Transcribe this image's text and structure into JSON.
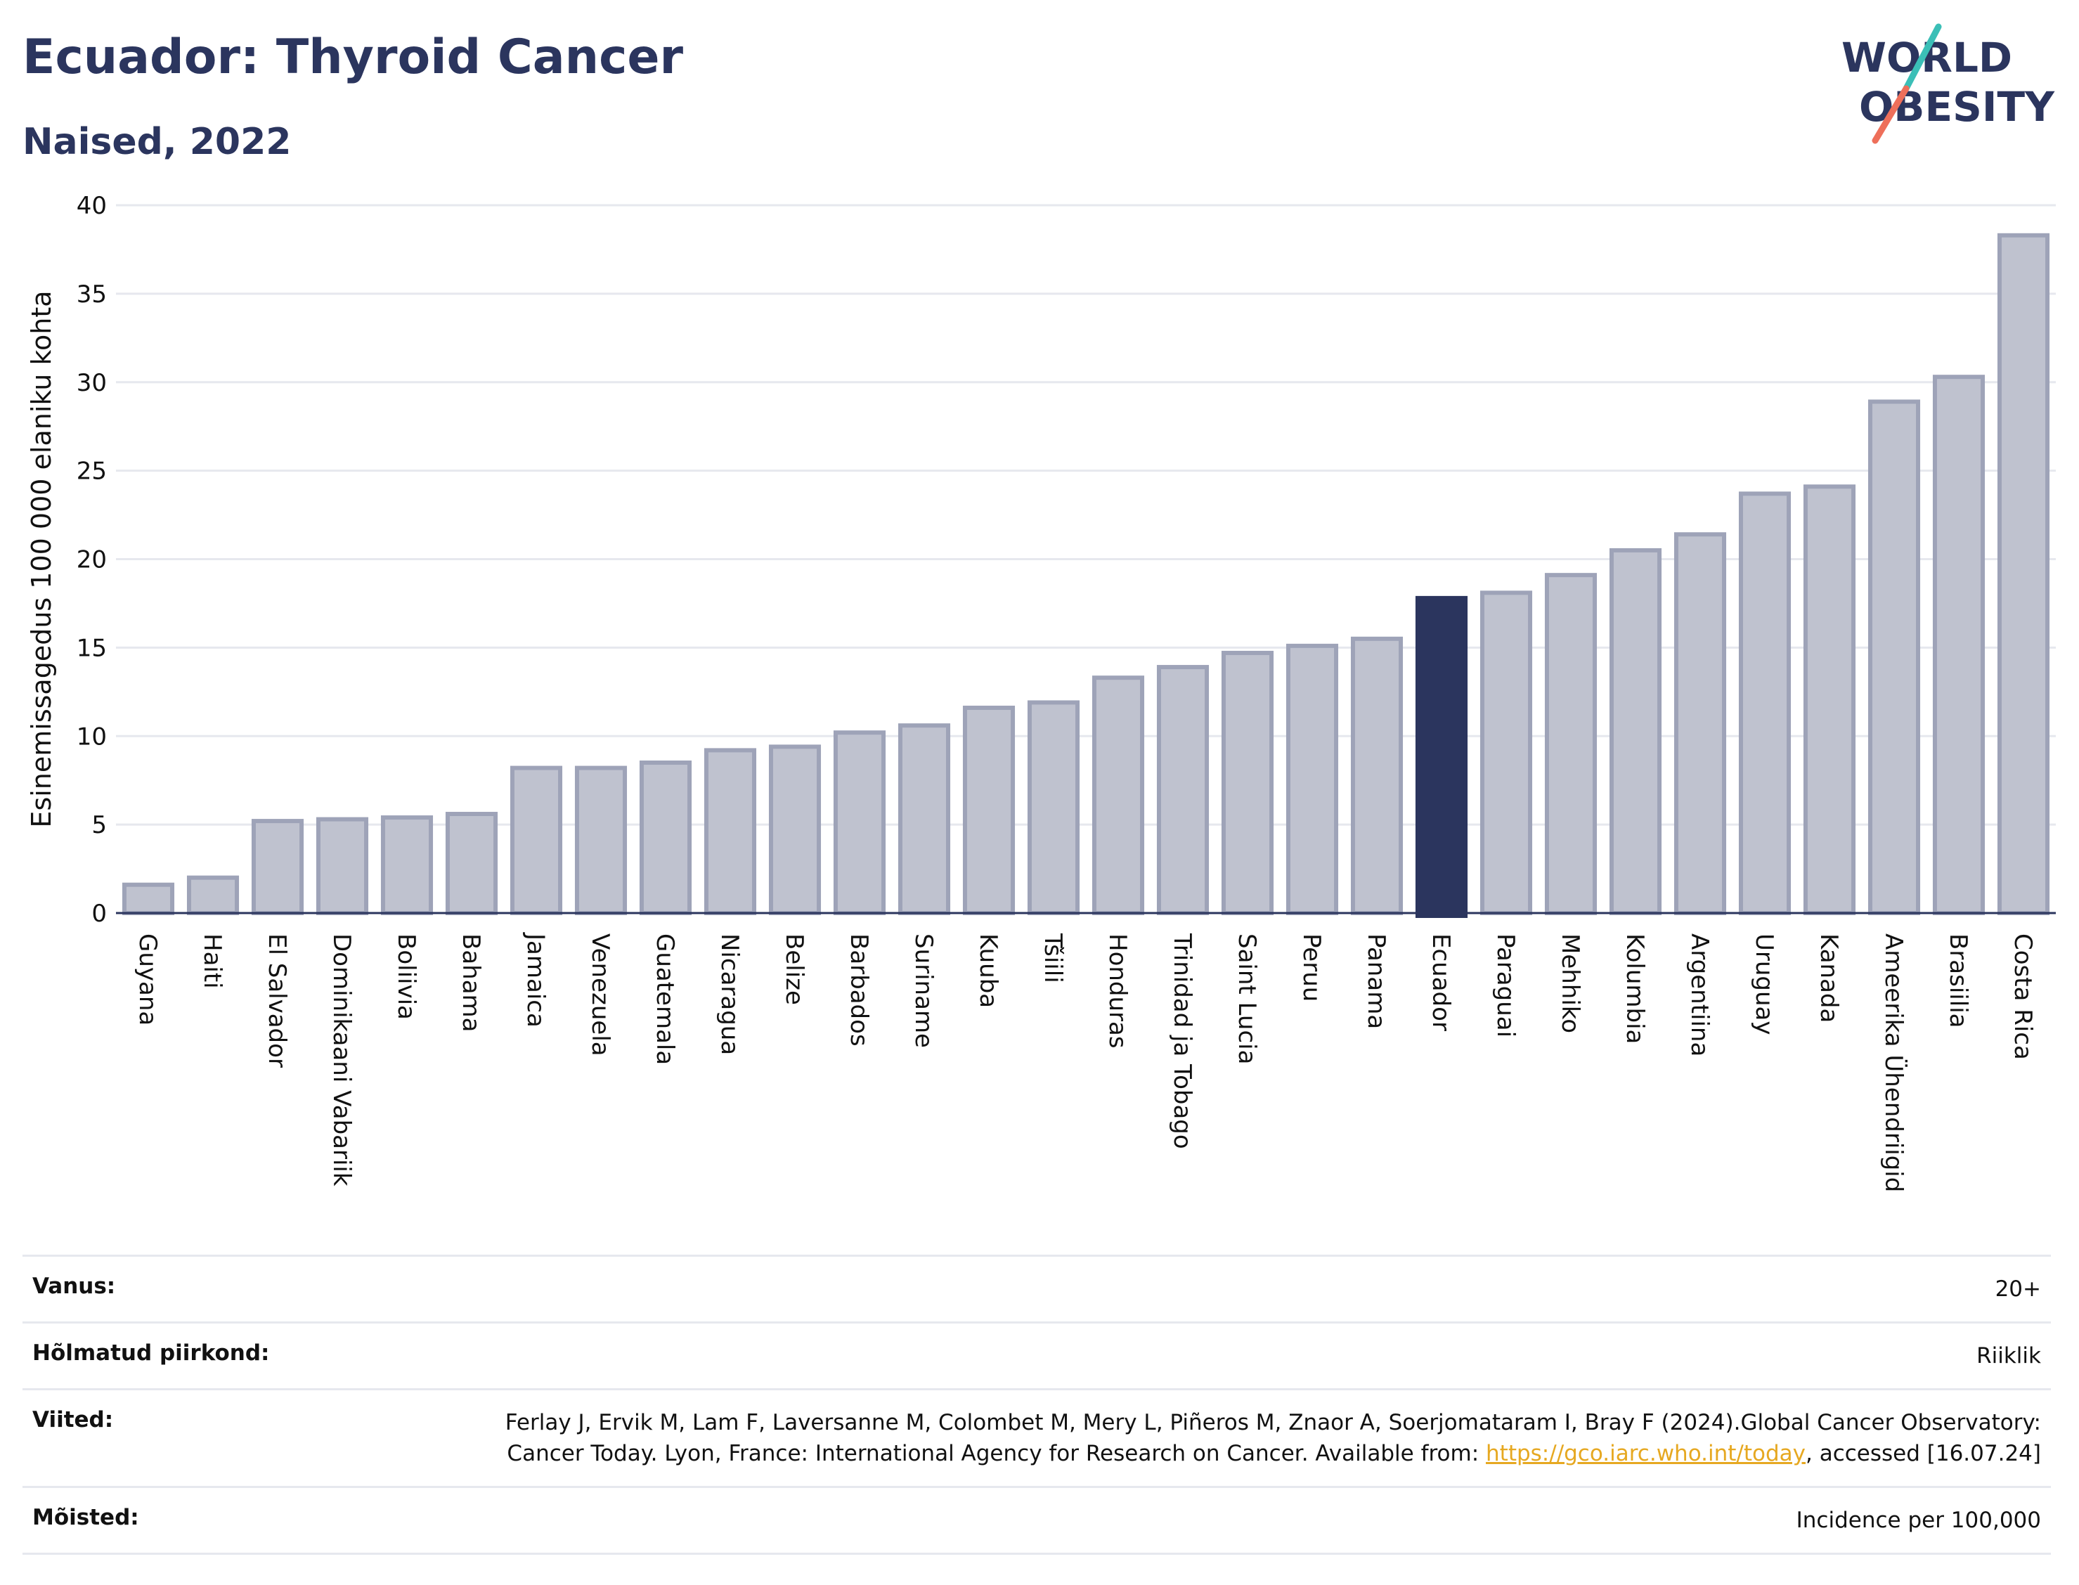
{
  "header": {
    "title": "Ecuador: Thyroid Cancer",
    "subtitle": "Naised, 2022",
    "logo_line1": "WORLD",
    "logo_line2": "OBESITY"
  },
  "colors": {
    "primary": "#2b355e",
    "bar": "#bfc2cf",
    "bar_border": "#9ea3b8",
    "highlight": "#2b355e",
    "link": "#e6a821",
    "logo_teal": "#3bbfb7",
    "logo_coral": "#ee6f5a"
  },
  "chart_data": {
    "type": "bar",
    "ylabel": "Esinemissagedus 100 000 elaniku kohta",
    "xlabel": "",
    "ylim": [
      0,
      40
    ],
    "yticks": [
      0,
      5,
      10,
      15,
      20,
      25,
      30,
      35,
      40
    ],
    "grid": true,
    "highlight": "Ecuador",
    "categories": [
      "Guyana",
      "Haiti",
      "El Salvador",
      "Dominikaani Vabariik",
      "Boliivia",
      "Bahama",
      "Jamaica",
      "Venezuela",
      "Guatemala",
      "Nicaragua",
      "Belize",
      "Barbados",
      "Suriname",
      "Kuuba",
      "Tšiili",
      "Honduras",
      "Trinidad ja Tobago",
      "Saint Lucia",
      "Peruu",
      "Panama",
      "Ecuador",
      "Paraguai",
      "Mehhiko",
      "Kolumbia",
      "Argentiina",
      "Uruguay",
      "Kanada",
      "Ameerika Ühendriigid",
      "Brasiilia",
      "Costa Rica"
    ],
    "values": [
      1.6,
      2.0,
      5.2,
      5.3,
      5.4,
      5.6,
      8.2,
      8.2,
      8.5,
      9.2,
      9.4,
      10.2,
      10.6,
      11.6,
      11.9,
      13.3,
      13.9,
      14.7,
      15.1,
      15.5,
      17.8,
      18.1,
      19.1,
      20.5,
      21.4,
      23.7,
      24.1,
      28.9,
      30.3,
      38.3
    ]
  },
  "meta": [
    {
      "label": "Vanus:",
      "value": "20+"
    },
    {
      "label": "Hõlmatud piirkond:",
      "value": "Riiklik"
    },
    {
      "label": "Viited:",
      "value_pre": "Ferlay J, Ervik M, Lam F, Laversanne M, Colombet M, Mery L, Piñeros M, Znaor A, Soerjomataram I, Bray F (2024).Global Cancer Observatory: Cancer Today. Lyon, France: International Agency for Research on Cancer. Available from: ",
      "value_link": "https://gco.iarc.who.int/today",
      "value_post": ", accessed [16.07.24]"
    },
    {
      "label": "Mõisted:",
      "value": "Incidence per 100,000"
    }
  ]
}
